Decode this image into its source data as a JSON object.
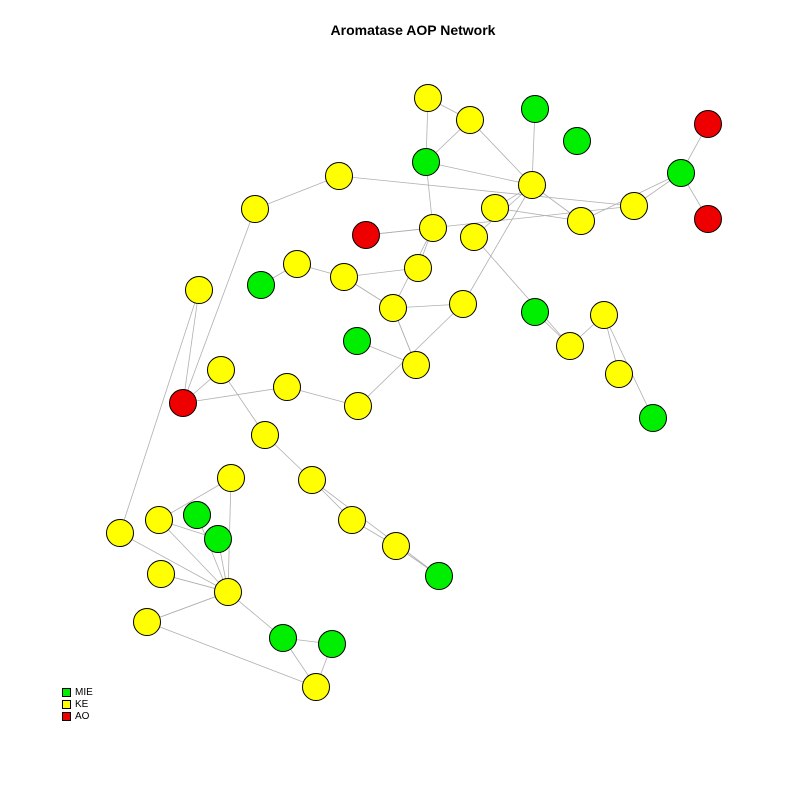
{
  "title": "Aromatase AOP Network",
  "legend": [
    {
      "label": "MIE",
      "color": "#00ee00"
    },
    {
      "label": "KE",
      "color": "#ffff00"
    },
    {
      "label": "AO",
      "color": "#ee0000"
    }
  ],
  "node_colors": {
    "MIE": "#00ee00",
    "KE": "#ffff00",
    "AO": "#ee0000"
  },
  "edge_color": "#b0b0b0",
  "nodes": [
    {
      "id": "n1",
      "type": "KE"
    },
    {
      "id": "n2",
      "type": "KE"
    },
    {
      "id": "n3",
      "type": "MIE"
    },
    {
      "id": "n4",
      "type": "MIE"
    },
    {
      "id": "n5",
      "type": "MIE"
    },
    {
      "id": "n6",
      "type": "AO"
    },
    {
      "id": "n7",
      "type": "KE"
    },
    {
      "id": "n8",
      "type": "MIE"
    },
    {
      "id": "n9",
      "type": "KE"
    },
    {
      "id": "n10",
      "type": "KE"
    },
    {
      "id": "n11",
      "type": "KE"
    },
    {
      "id": "n12",
      "type": "KE"
    },
    {
      "id": "n13",
      "type": "AO"
    },
    {
      "id": "n14",
      "type": "AO"
    },
    {
      "id": "n15",
      "type": "KE"
    },
    {
      "id": "n16",
      "type": "AO"
    },
    {
      "id": "n17",
      "type": "KE"
    },
    {
      "id": "n18",
      "type": "KE"
    },
    {
      "id": "n19",
      "type": "MIE"
    },
    {
      "id": "n20",
      "type": "KE"
    },
    {
      "id": "n21",
      "type": "KE"
    },
    {
      "id": "n22",
      "type": "KE"
    },
    {
      "id": "n23",
      "type": "KE"
    },
    {
      "id": "n24",
      "type": "MIE"
    },
    {
      "id": "n25",
      "type": "KE"
    },
    {
      "id": "n26",
      "type": "MIE"
    },
    {
      "id": "n27",
      "type": "KE"
    },
    {
      "id": "n28",
      "type": "KE"
    },
    {
      "id": "n29",
      "type": "KE"
    },
    {
      "id": "n30",
      "type": "KE"
    },
    {
      "id": "n31",
      "type": "AO"
    },
    {
      "id": "n32",
      "type": "KE"
    },
    {
      "id": "n33",
      "type": "KE"
    },
    {
      "id": "n34",
      "type": "MIE"
    },
    {
      "id": "n35",
      "type": "KE"
    },
    {
      "id": "n36",
      "type": "KE"
    },
    {
      "id": "n37",
      "type": "KE"
    },
    {
      "id": "n38",
      "type": "KE"
    },
    {
      "id": "n39",
      "type": "MIE"
    },
    {
      "id": "n40",
      "type": "KE"
    },
    {
      "id": "n41",
      "type": "KE"
    },
    {
      "id": "n42",
      "type": "MIE"
    },
    {
      "id": "n43",
      "type": "KE"
    },
    {
      "id": "n44",
      "type": "KE"
    },
    {
      "id": "n45",
      "type": "KE"
    },
    {
      "id": "n46",
      "type": "MIE"
    },
    {
      "id": "n47",
      "type": "KE"
    },
    {
      "id": "n48",
      "type": "KE"
    },
    {
      "id": "n49",
      "type": "MIE"
    },
    {
      "id": "n50",
      "type": "KE"
    }
  ],
  "edges": [
    [
      "n1",
      "n3"
    ],
    [
      "n2",
      "n3"
    ],
    [
      "n1",
      "n2"
    ],
    [
      "n2",
      "n7"
    ],
    [
      "n3",
      "n7"
    ],
    [
      "n4",
      "n7"
    ],
    [
      "n7",
      "n10"
    ],
    [
      "n7",
      "n11"
    ],
    [
      "n7",
      "n23"
    ],
    [
      "n10",
      "n11"
    ],
    [
      "n11",
      "n12"
    ],
    [
      "n12",
      "n13"
    ],
    [
      "n12",
      "n14"
    ],
    [
      "n7",
      "n18"
    ],
    [
      "n18",
      "n33"
    ],
    [
      "n33",
      "n32"
    ],
    [
      "n32",
      "n35"
    ],
    [
      "n3",
      "n15"
    ],
    [
      "n15",
      "n17"
    ],
    [
      "n16",
      "n15"
    ],
    [
      "n15",
      "n22"
    ],
    [
      "n9",
      "n16"
    ],
    [
      "n9",
      "n8"
    ],
    [
      "n17",
      "n20"
    ],
    [
      "n22",
      "n20"
    ],
    [
      "n22",
      "n23"
    ],
    [
      "n23",
      "n27"
    ],
    [
      "n27",
      "n30"
    ],
    [
      "n30",
      "n31"
    ],
    [
      "n19",
      "n21"
    ],
    [
      "n21",
      "n20"
    ],
    [
      "n20",
      "n22"
    ],
    [
      "n22",
      "n25"
    ],
    [
      "n31",
      "n28"
    ],
    [
      "n28",
      "n29"
    ],
    [
      "n29",
      "n9"
    ],
    [
      "n24",
      "n25"
    ],
    [
      "n25",
      "n22"
    ],
    [
      "n26",
      "n33"
    ],
    [
      "n34",
      "n32"
    ],
    [
      "n31",
      "n36"
    ],
    [
      "n31",
      "n40"
    ],
    [
      "n36",
      "n37"
    ],
    [
      "n37",
      "n38"
    ],
    [
      "n38",
      "n39"
    ],
    [
      "n40",
      "n41"
    ],
    [
      "n41",
      "n44"
    ],
    [
      "n44",
      "n47"
    ],
    [
      "n44",
      "n48"
    ],
    [
      "n42",
      "n44"
    ],
    [
      "n43",
      "n44"
    ],
    [
      "n45",
      "n46"
    ],
    [
      "n46",
      "n44"
    ],
    [
      "n45",
      "n44"
    ],
    [
      "n47",
      "n44"
    ],
    [
      "n43",
      "n45"
    ],
    [
      "n44",
      "n48"
    ],
    [
      "n44",
      "n49"
    ],
    [
      "n49",
      "n50"
    ],
    [
      "n48",
      "n50"
    ]
  ]
}
